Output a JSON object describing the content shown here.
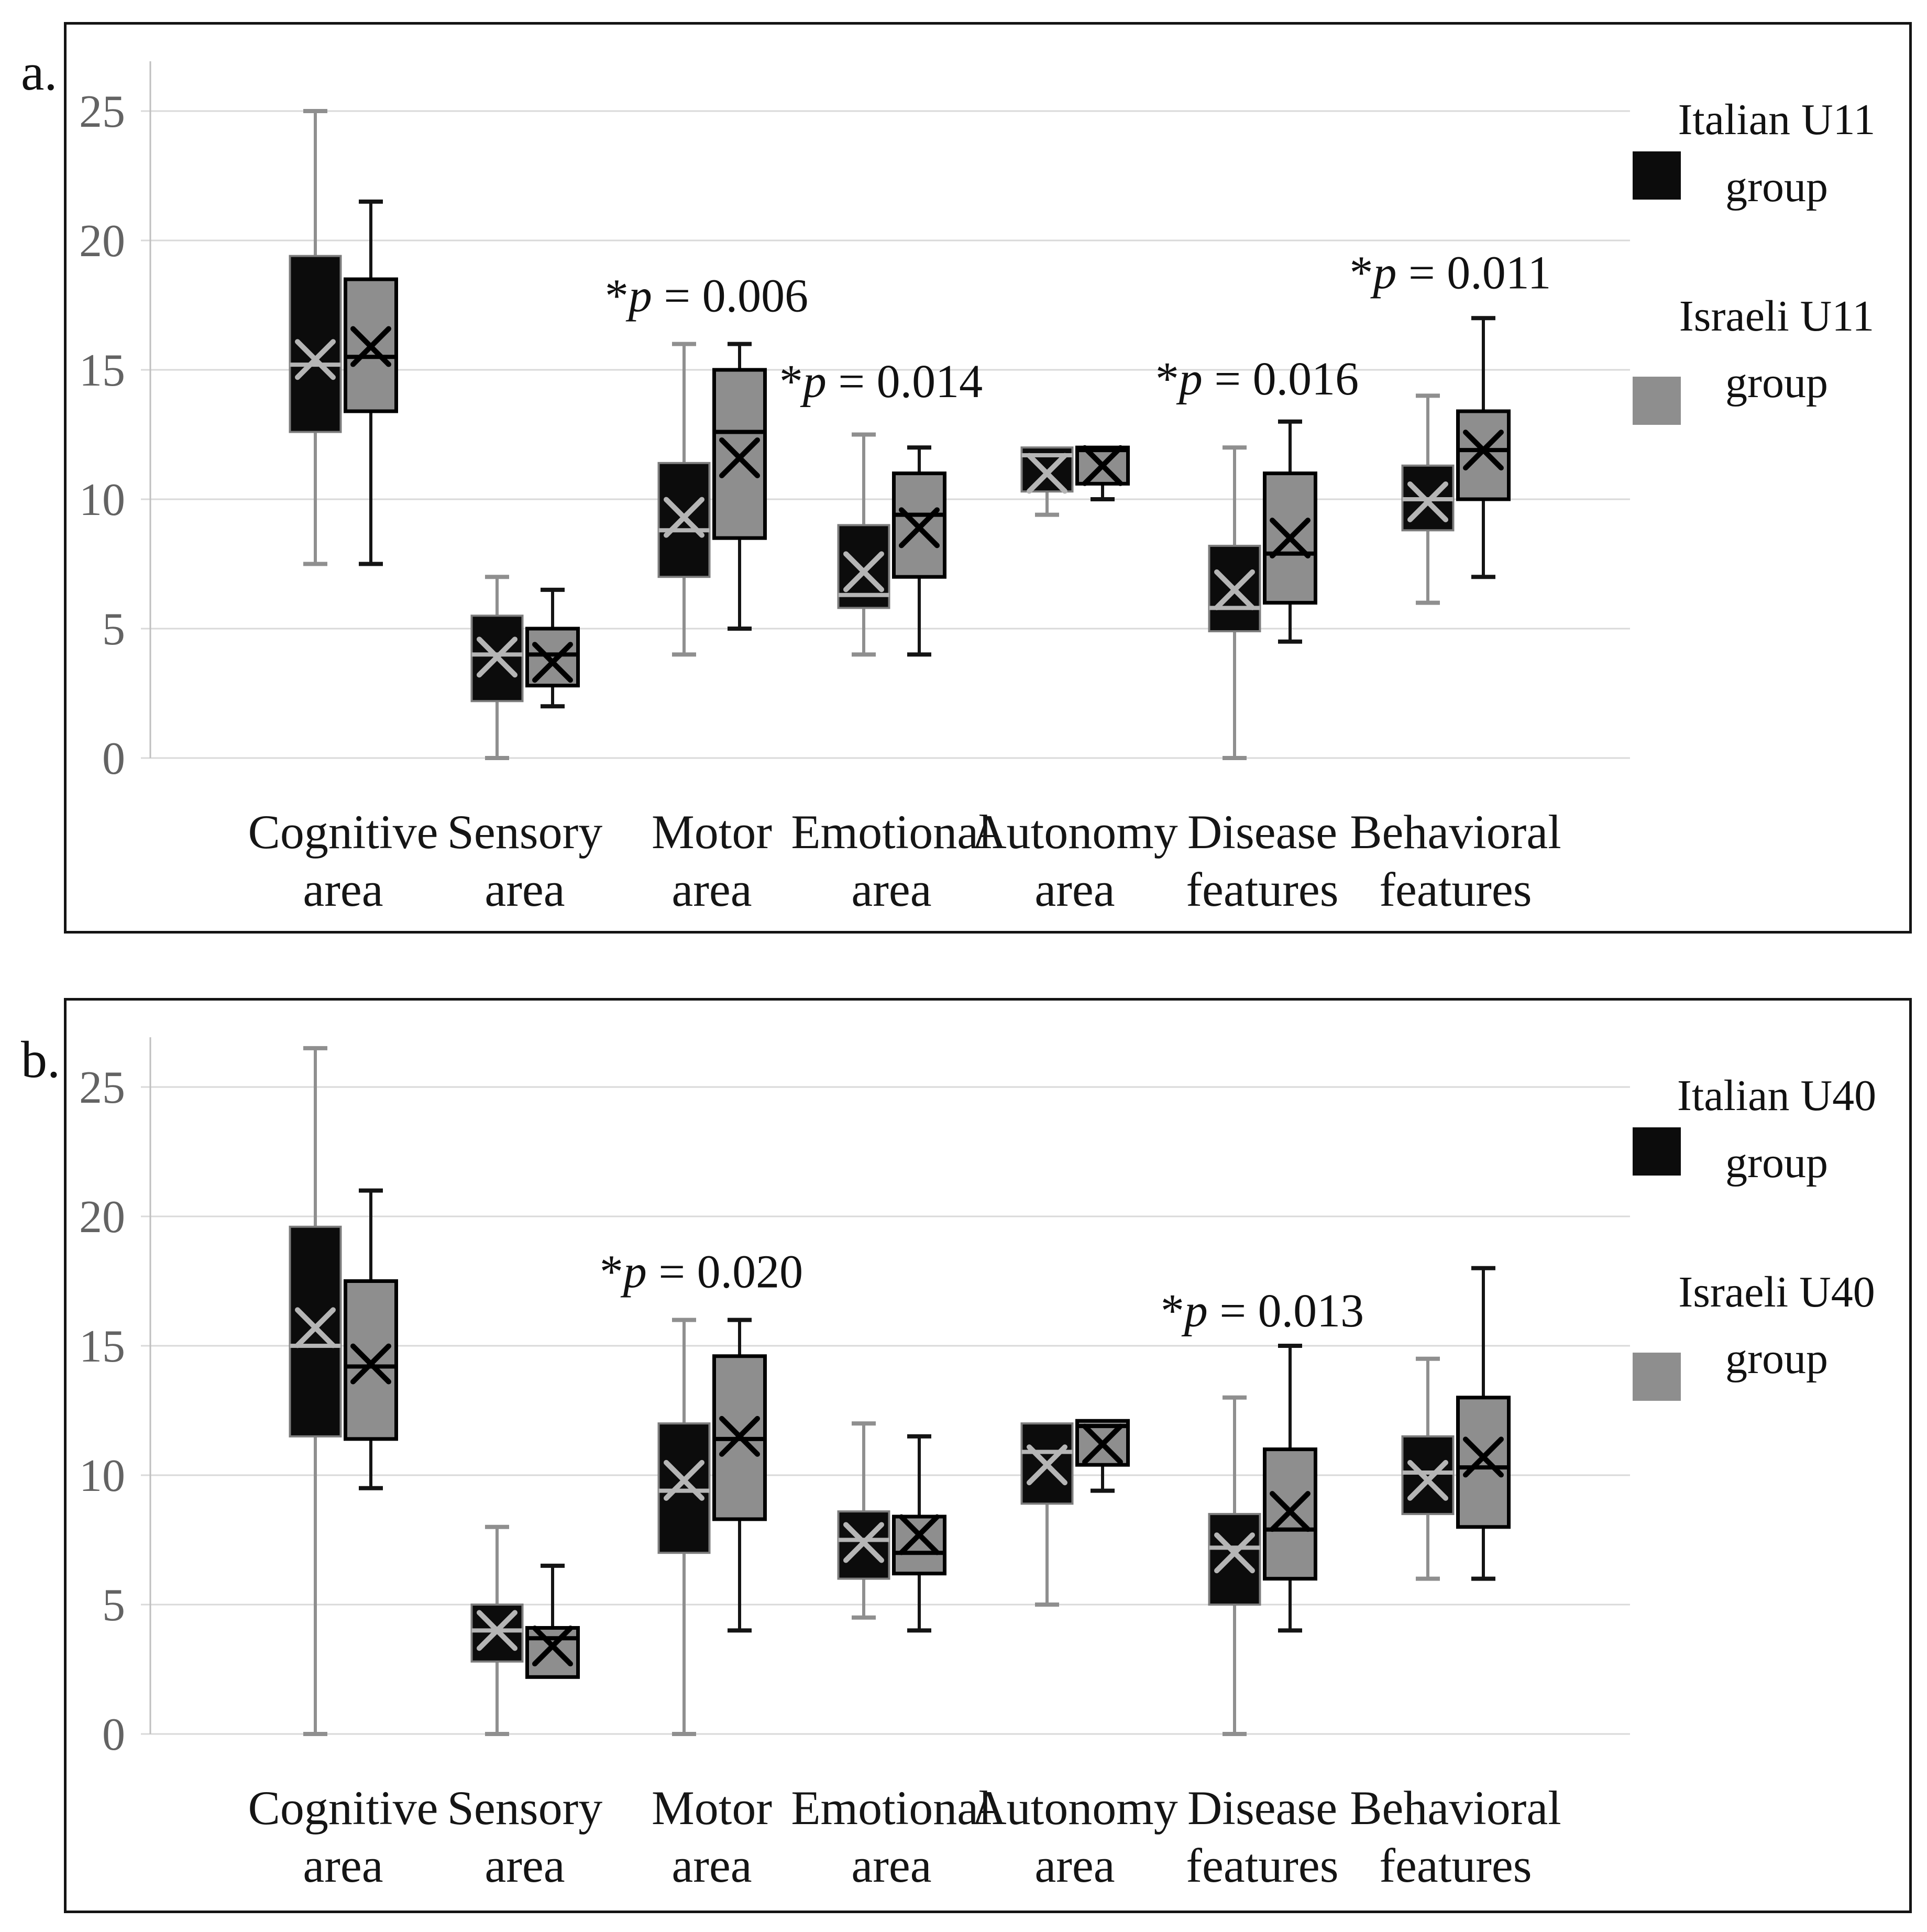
{
  "figure": {
    "background": "#ffffff",
    "colors": {
      "italian_fill": "#0c0c0c",
      "italian_edge": "#7d7d7d",
      "italian_whisker": "#8f8f8f",
      "italian_marker": "#b5b5b5",
      "israeli_fill": "#8e8e8e",
      "israeli_edge": "#000000",
      "israeli_whisker": "#141414",
      "israeli_marker": "#000000",
      "gridline": "#d9d9d9",
      "axis_line": "#bfbfbf",
      "tick_label": "#636363",
      "category_label": "#151515",
      "annotation": "#111111",
      "frame": "#141414"
    }
  },
  "panels": [
    {
      "letter": "a.",
      "legend": [
        {
          "line1": "Italian U11",
          "line2": "group",
          "color": "#0c0c0c"
        },
        {
          "line1": "Israeli U11",
          "line2": "group",
          "color": "#8e8e8e"
        }
      ],
      "chart_data": {
        "type": "boxplot",
        "title": "",
        "xlabel": "",
        "ylabel": "",
        "ylim": [
          0,
          27
        ],
        "yticks": [
          0,
          5,
          10,
          15,
          20,
          25
        ],
        "grid": true,
        "legend_position": "right",
        "categories": [
          [
            "Cognitive",
            "area"
          ],
          [
            "Sensory",
            "area"
          ],
          [
            "Motor",
            "area"
          ],
          [
            "Emotional",
            "area"
          ],
          [
            "Autonomy",
            "area"
          ],
          [
            "Disease",
            "features"
          ],
          [
            "Behavioral",
            "features"
          ]
        ],
        "series": [
          {
            "name": "Italian U11 group",
            "role": "italian",
            "boxes": [
              {
                "low": 7.5,
                "q1": 12.6,
                "median": 15.2,
                "mean": 15.4,
                "q3": 19.4,
                "high": 25
              },
              {
                "low": 0,
                "q1": 2.2,
                "median": 4.0,
                "mean": 3.9,
                "q3": 5.5,
                "high": 7
              },
              {
                "low": 4,
                "q1": 7.0,
                "median": 8.8,
                "mean": 9.3,
                "q3": 11.4,
                "high": 16
              },
              {
                "low": 4,
                "q1": 5.8,
                "median": 6.3,
                "mean": 7.2,
                "q3": 9.0,
                "high": 12.5
              },
              {
                "low": 9.4,
                "q1": 10.3,
                "median": 11.7,
                "mean": 11.0,
                "q3": 12.0,
                "high": null
              },
              {
                "low": 0,
                "q1": 4.9,
                "median": 5.8,
                "mean": 6.5,
                "q3": 8.2,
                "high": 12
              },
              {
                "low": 6,
                "q1": 8.8,
                "median": 10.0,
                "mean": 9.9,
                "q3": 11.3,
                "high": 14
              }
            ]
          },
          {
            "name": "Israeli U11 group",
            "role": "israeli",
            "boxes": [
              {
                "low": 7.5,
                "q1": 13.4,
                "median": 15.5,
                "mean": 15.9,
                "q3": 18.5,
                "high": 21.5
              },
              {
                "low": 2,
                "q1": 2.8,
                "median": 4.0,
                "mean": 3.7,
                "q3": 5.0,
                "high": 6.5
              },
              {
                "low": 5,
                "q1": 8.5,
                "median": 12.6,
                "mean": 11.6,
                "q3": 15.0,
                "high": 16
              },
              {
                "low": 4,
                "q1": 7.0,
                "median": 9.4,
                "mean": 8.9,
                "q3": 11.0,
                "high": 12
              },
              {
                "low": 10,
                "q1": 10.6,
                "median": 11.9,
                "mean": 11.3,
                "q3": 12.0,
                "high": null
              },
              {
                "low": 4.5,
                "q1": 6.0,
                "median": 7.9,
                "mean": 8.5,
                "q3": 11.0,
                "high": 13
              },
              {
                "low": 7,
                "q1": 10.0,
                "median": 11.9,
                "mean": 11.9,
                "q3": 13.4,
                "high": 17
              }
            ]
          }
        ],
        "annotations": [
          {
            "pre": "*",
            "italic": "p",
            "post": " = 0.006",
            "category_index": 2,
            "value": 17.9,
            "dx": -10
          },
          {
            "pre": "*",
            "italic": "p",
            "post": " = 0.014",
            "category_index": 3,
            "value": 14.6,
            "dx": -20
          },
          {
            "pre": "*",
            "italic": "p",
            "post": " = 0.016",
            "category_index": 5,
            "value": 14.7,
            "dx": -10
          },
          {
            "pre": "*",
            "italic": "p",
            "post": " = 0.011",
            "category_index": 6,
            "value": 18.8,
            "dx": -10
          }
        ]
      }
    },
    {
      "letter": "b.",
      "legend": [
        {
          "line1": "Italian U40",
          "line2": "group",
          "color": "#0c0c0c"
        },
        {
          "line1": "Israeli U40",
          "line2": "group",
          "color": "#8e8e8e"
        }
      ],
      "chart_data": {
        "type": "boxplot",
        "title": "",
        "xlabel": "",
        "ylabel": "",
        "ylim": [
          0,
          27
        ],
        "yticks": [
          0,
          5,
          10,
          15,
          20,
          25
        ],
        "grid": true,
        "legend_position": "right",
        "categories": [
          [
            "Cognitive",
            "area"
          ],
          [
            "Sensory",
            "area"
          ],
          [
            "Motor",
            "area"
          ],
          [
            "Emotional",
            "area"
          ],
          [
            "Autonomy",
            "area"
          ],
          [
            "Disease",
            "features"
          ],
          [
            "Behavioral",
            "features"
          ]
        ],
        "series": [
          {
            "name": "Italian U40 group",
            "role": "italian",
            "boxes": [
              {
                "low": 0,
                "q1": 11.5,
                "median": 15.0,
                "mean": 15.7,
                "q3": 19.6,
                "high": 26.5
              },
              {
                "low": 0,
                "q1": 2.8,
                "median": 4.0,
                "mean": 4.0,
                "q3": 5.0,
                "high": 8
              },
              {
                "low": 0,
                "q1": 7.0,
                "median": 9.4,
                "mean": 9.8,
                "q3": 12.0,
                "high": 16
              },
              {
                "low": 4.5,
                "q1": 6.0,
                "median": 7.5,
                "mean": 7.4,
                "q3": 8.6,
                "high": 12
              },
              {
                "low": 5,
                "q1": 8.9,
                "median": 10.9,
                "mean": 10.4,
                "q3": 12.0,
                "high": null
              },
              {
                "low": 0,
                "q1": 5.0,
                "median": 7.2,
                "mean": 7.0,
                "q3": 8.5,
                "high": 13
              },
              {
                "low": 6,
                "q1": 8.5,
                "median": 10.1,
                "mean": 9.8,
                "q3": 11.5,
                "high": 14.5
              }
            ]
          },
          {
            "name": "Israeli U40 group",
            "role": "israeli",
            "boxes": [
              {
                "low": 9.5,
                "q1": 11.4,
                "median": 14.2,
                "mean": 14.3,
                "q3": 17.5,
                "high": 21
              },
              {
                "low": null,
                "q1": 2.2,
                "median": 3.7,
                "mean": 3.4,
                "q3": 4.1,
                "high": 6.5
              },
              {
                "low": 4,
                "q1": 8.3,
                "median": 11.4,
                "mean": 11.5,
                "q3": 14.6,
                "high": 16
              },
              {
                "low": 4,
                "q1": 6.2,
                "median": 7.0,
                "mean": 7.7,
                "q3": 8.4,
                "high": 11.5
              },
              {
                "low": 9.4,
                "q1": 10.4,
                "median": 11.9,
                "mean": 11.2,
                "q3": 12.1,
                "high": null
              },
              {
                "low": 4,
                "q1": 6.0,
                "median": 7.9,
                "mean": 8.6,
                "q3": 11.0,
                "high": 15
              },
              {
                "low": 6,
                "q1": 8.0,
                "median": 10.3,
                "mean": 10.7,
                "q3": 13.0,
                "high": 18
              }
            ]
          }
        ],
        "annotations": [
          {
            "pre": "*",
            "italic": "p",
            "post": " = 0.020",
            "category_index": 2,
            "value": 17.9,
            "dx": -20
          },
          {
            "pre": "*",
            "italic": "p",
            "post": " = 0.013",
            "category_index": 5,
            "value": 16.4,
            "dx": 0
          }
        ]
      }
    }
  ]
}
